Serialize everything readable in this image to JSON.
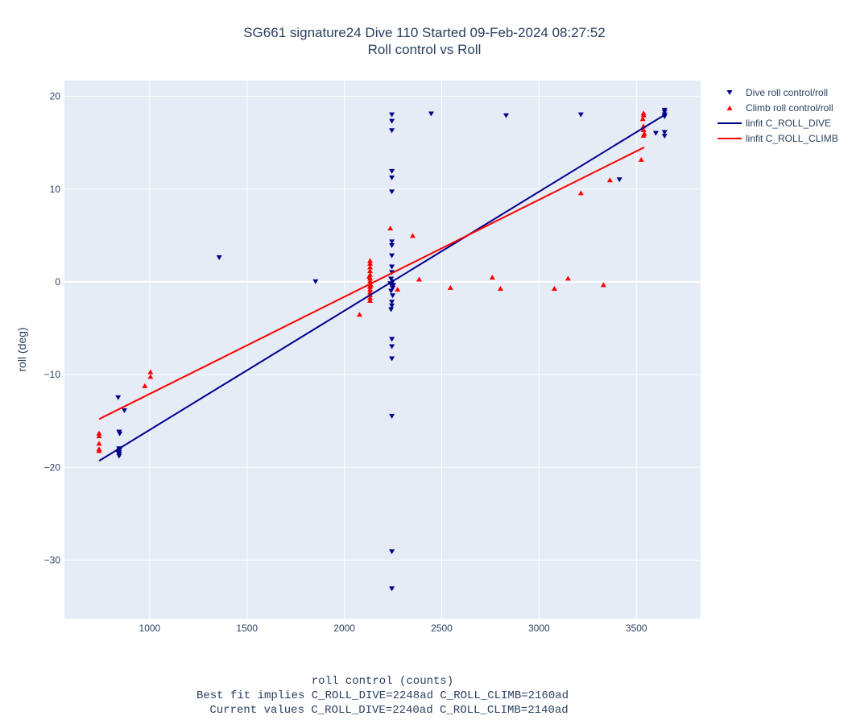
{
  "chart_data": {
    "type": "scatter",
    "title": "SG661 signature24 Dive 110 Started 09-Feb-2024 08:27:52",
    "subtitle": "Roll control vs Roll",
    "xlabel": "roll control (counts)",
    "ylabel": "roll (deg)",
    "footer": [
      "Best fit implies C_ROLL_DIVE=2248ad C_ROLL_CLIMB=2160ad",
      "Current values C_ROLL_DIVE=2240ad C_ROLL_CLIMB=2140ad"
    ],
    "xlim": [
      562,
      3830
    ],
    "ylim": [
      -36.3,
      21.7
    ],
    "xticks": [
      1000,
      1500,
      2000,
      2500,
      3000,
      3500
    ],
    "yticks": [
      20,
      10,
      0,
      -10,
      -20,
      -30
    ],
    "ytick_labels": [
      "20",
      "10",
      "0",
      "−10",
      "−20",
      "−30"
    ],
    "grid": true,
    "legend_position": "right",
    "series": [
      {
        "name": "Dive roll control/roll",
        "kind": "marker-down",
        "color": "#00008b",
        "points": [
          [
            838,
            -12.5
          ],
          [
            870,
            -13.9
          ],
          [
            843,
            -16.2
          ],
          [
            846,
            -16.4
          ],
          [
            843,
            -18.0
          ],
          [
            843,
            -18.2
          ],
          [
            843,
            -18.4
          ],
          [
            843,
            -18.6
          ],
          [
            843,
            -18.8
          ],
          [
            846,
            -18.1
          ],
          [
            840,
            -18.5
          ],
          [
            1357,
            2.6
          ],
          [
            1852,
            0
          ],
          [
            2244,
            18.0
          ],
          [
            2244,
            17.3
          ],
          [
            2244,
            16.3
          ],
          [
            2244,
            11.9
          ],
          [
            2244,
            11.2
          ],
          [
            2244,
            9.7
          ],
          [
            2244,
            4.3
          ],
          [
            2244,
            3.9
          ],
          [
            2244,
            2.8
          ],
          [
            2244,
            1.6
          ],
          [
            2244,
            1.0
          ],
          [
            2240,
            0.3
          ],
          [
            2248,
            0
          ],
          [
            2240,
            -0.3
          ],
          [
            2248,
            -0.7
          ],
          [
            2240,
            -1.0
          ],
          [
            2248,
            -1.5
          ],
          [
            2244,
            -2.2
          ],
          [
            2244,
            -2.6
          ],
          [
            2240,
            -3.0
          ],
          [
            2252,
            -0.4
          ],
          [
            2236,
            -0.2
          ],
          [
            2244,
            -6.2
          ],
          [
            2244,
            -7.0
          ],
          [
            2244,
            -8.3
          ],
          [
            2244,
            -14.5
          ],
          [
            2244,
            -29.1
          ],
          [
            2244,
            -33.1
          ],
          [
            2446,
            18.1
          ],
          [
            2831,
            17.9
          ],
          [
            3215,
            18.0
          ],
          [
            3413,
            11.0
          ],
          [
            3645,
            18.5
          ],
          [
            3645,
            18.3
          ],
          [
            3645,
            18.0
          ],
          [
            3645,
            17.8
          ],
          [
            3600,
            16.0
          ],
          [
            3645,
            16.1
          ],
          [
            3645,
            15.7
          ]
        ]
      },
      {
        "name": "Climb roll control/roll",
        "kind": "marker-up",
        "color": "#ff0000",
        "points": [
          [
            740,
            -16.3
          ],
          [
            740,
            -16.6
          ],
          [
            740,
            -17.4
          ],
          [
            740,
            -18.0
          ],
          [
            740,
            -18.2
          ],
          [
            975,
            -11.2
          ],
          [
            1004,
            -9.7
          ],
          [
            1004,
            -10.2
          ],
          [
            2078,
            -3.5
          ],
          [
            2132,
            2.3
          ],
          [
            2132,
            2.0
          ],
          [
            2132,
            1.6
          ],
          [
            2132,
            1.2
          ],
          [
            2132,
            0.8
          ],
          [
            2132,
            0.4
          ],
          [
            2132,
            0.1
          ],
          [
            2132,
            -0.2
          ],
          [
            2132,
            -0.5
          ],
          [
            2132,
            -0.8
          ],
          [
            2132,
            -1.1
          ],
          [
            2132,
            -1.4
          ],
          [
            2132,
            -1.7
          ],
          [
            2132,
            -2.0
          ],
          [
            2136,
            -0.3
          ],
          [
            2128,
            0.6
          ],
          [
            2236,
            5.8
          ],
          [
            2273,
            -0.8
          ],
          [
            2351,
            5.0
          ],
          [
            2384,
            0.3
          ],
          [
            2545,
            -0.6
          ],
          [
            2760,
            0.5
          ],
          [
            2802,
            -0.7
          ],
          [
            3079,
            -0.7
          ],
          [
            3149,
            0.4
          ],
          [
            3215,
            9.6
          ],
          [
            3364,
            11.0
          ],
          [
            3331,
            -0.3
          ],
          [
            3525,
            13.2
          ],
          [
            3537,
            18.2
          ],
          [
            3537,
            18.0
          ],
          [
            3533,
            17.6
          ],
          [
            3537,
            16.8
          ],
          [
            3537,
            16.4
          ],
          [
            3541,
            16.0
          ],
          [
            3537,
            15.8
          ]
        ]
      },
      {
        "name": "linfit C_ROLL_DIVE",
        "kind": "line",
        "color": "#00008b",
        "points": [
          [
            740,
            -19.3
          ],
          [
            3653,
            18.1
          ]
        ]
      },
      {
        "name": "linfit C_ROLL_CLIMB",
        "kind": "line",
        "color": "#ff0000",
        "points": [
          [
            740,
            -14.8
          ],
          [
            3540,
            14.5
          ]
        ]
      }
    ]
  }
}
